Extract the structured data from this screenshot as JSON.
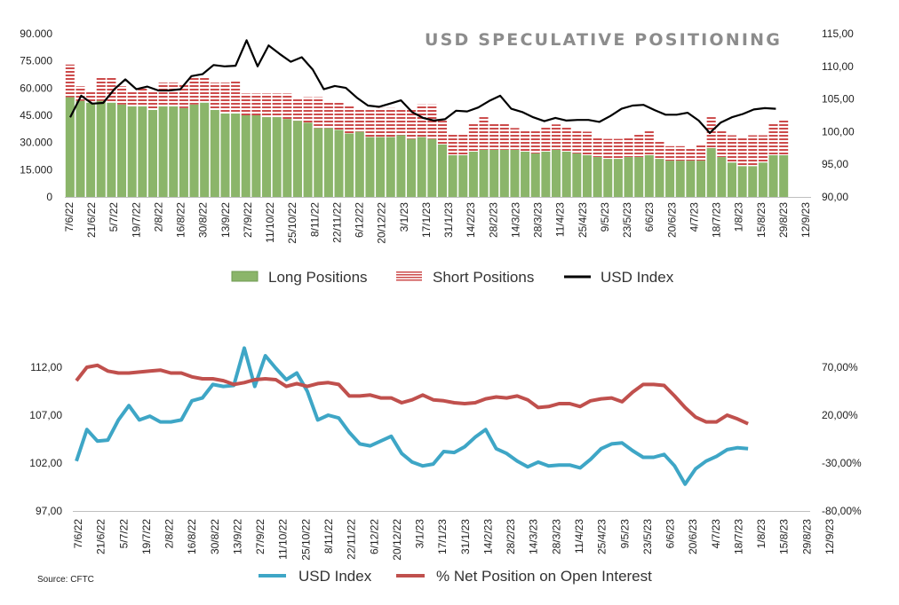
{
  "chart_data": [
    {
      "type": "bar",
      "title": "USD SPECULATIVE POSITIONING",
      "x_tick_labels": [
        "7/6/22",
        "21/6/22",
        "5/7/22",
        "19/7/22",
        "2/8/22",
        "16/8/22",
        "30/8/22",
        "13/9/22",
        "27/9/22",
        "11/10/22",
        "25/10/22",
        "8/11/22",
        "22/11/22",
        "6/12/22",
        "20/12/22",
        "3/1/23",
        "17/1/23",
        "31/1/23",
        "14/2/23",
        "28/2/23",
        "14/3/23",
        "28/3/23",
        "11/4/23",
        "25/4/23",
        "9/5/23",
        "23/5/23",
        "6/6/23",
        "20/6/23",
        "4/7/23",
        "18/7/23",
        "1/8/23",
        "15/8/23",
        "29/8/23",
        "12/9/23"
      ],
      "y_left": {
        "ylim": [
          0,
          90000
        ],
        "ticks": [
          "0",
          "15.000",
          "30.000",
          "45.000",
          "60.000",
          "75.000",
          "90.000"
        ]
      },
      "y_right": {
        "ylim": [
          90,
          115
        ],
        "ticks": [
          "90,00",
          "95,00",
          "100,00",
          "105,00",
          "110,00",
          "115,00"
        ]
      },
      "series": [
        {
          "name": "Long Positions",
          "color": "#8bb56a",
          "axis": "left",
          "type": "bar",
          "values": [
            55000,
            53000,
            52000,
            53000,
            52000,
            51000,
            50000,
            50000,
            48000,
            50000,
            50000,
            49000,
            51000,
            52000,
            48000,
            46000,
            46000,
            45000,
            45000,
            44000,
            44000,
            43000,
            42000,
            41000,
            38000,
            38000,
            37000,
            35000,
            36000,
            33000,
            33000,
            33000,
            34000,
            32000,
            33000,
            32000,
            29000,
            23000,
            23000,
            25000,
            26000,
            26000,
            26000,
            26000,
            25000,
            24000,
            25000,
            26000,
            25000,
            24000,
            23000,
            22000,
            21000,
            21000,
            22000,
            22000,
            23000,
            21000,
            20000,
            20000,
            20000,
            20000,
            27000,
            22000,
            19000,
            17000,
            17000,
            19000,
            23000,
            23000
          ]
        },
        {
          "name": "Short Positions",
          "color": "#cc4b4b",
          "axis": "left",
          "type": "bar",
          "values": [
            18000,
            8000,
            6000,
            13000,
            14000,
            10000,
            8000,
            10000,
            10000,
            13000,
            13000,
            13000,
            15000,
            14000,
            15000,
            17000,
            18000,
            12000,
            12000,
            13000,
            13000,
            14000,
            12000,
            14000,
            17000,
            14000,
            15000,
            15000,
            12000,
            15000,
            16000,
            16000,
            14000,
            16000,
            18000,
            19000,
            13000,
            12000,
            12000,
            16000,
            18000,
            15000,
            15000,
            12000,
            12000,
            13000,
            14000,
            14000,
            14000,
            13000,
            13000,
            11000,
            11000,
            11000,
            11000,
            13000,
            14000,
            10000,
            8000,
            8000,
            7000,
            9000,
            17000,
            15000,
            15000,
            16000,
            17000,
            15000,
            18000,
            20000
          ]
        },
        {
          "name": "USD Index",
          "color": "#000000",
          "axis": "right",
          "type": "line",
          "values": [
            102.2,
            105.5,
            104.3,
            104.4,
            106.5,
            108.0,
            106.5,
            106.9,
            106.3,
            106.3,
            106.5,
            108.5,
            108.8,
            110.2,
            110.0,
            110.1,
            114.0,
            110.0,
            113.2,
            111.9,
            110.7,
            111.4,
            109.5,
            106.5,
            107.0,
            106.7,
            105.2,
            104.0,
            103.8,
            104.3,
            104.8,
            103.0,
            102.1,
            101.7,
            101.9,
            103.2,
            103.1,
            103.7,
            104.7,
            105.5,
            103.5,
            103.0,
            102.2,
            101.6,
            102.1,
            101.7,
            101.8,
            101.8,
            101.5,
            102.4,
            103.5,
            104.0,
            104.1,
            103.3,
            102.6,
            102.6,
            102.9,
            101.7,
            99.8,
            101.4,
            102.2,
            102.7,
            103.4,
            103.6,
            103.5
          ]
        }
      ],
      "legend": "bottom"
    },
    {
      "type": "line",
      "x_tick_labels": [
        "7/6/22",
        "21/6/22",
        "5/7/22",
        "19/7/22",
        "2/8/22",
        "16/8/22",
        "30/8/22",
        "13/9/22",
        "27/9/22",
        "11/10/22",
        "25/10/22",
        "8/11/22",
        "22/11/22",
        "6/12/22",
        "20/12/22",
        "3/1/23",
        "17/1/23",
        "31/1/23",
        "14/2/23",
        "28/2/23",
        "14/3/23",
        "28/3/23",
        "11/4/23",
        "25/4/23",
        "9/5/23",
        "23/5/23",
        "6/6/23",
        "20/6/23",
        "4/7/23",
        "18/7/23",
        "1/8/23",
        "15/8/23",
        "29/8/23",
        "12/9/23"
      ],
      "y_left": {
        "ylim": [
          97,
          112
        ],
        "ticks": [
          "97,00",
          "102,00",
          "107,00",
          "112,00"
        ]
      },
      "y_right": {
        "ylim": [
          -80,
          70
        ],
        "ticks": [
          "-80,00%",
          "-30,00%",
          "20,00%",
          "70,00%"
        ]
      },
      "series": [
        {
          "name": "USD Index",
          "color": "#3ea6c6",
          "axis": "left",
          "values": [
            102.2,
            105.5,
            104.3,
            104.4,
            106.5,
            108.0,
            106.5,
            106.9,
            106.3,
            106.3,
            106.5,
            108.5,
            108.8,
            110.2,
            110.0,
            110.1,
            114.0,
            110.0,
            113.2,
            111.9,
            110.7,
            111.4,
            109.5,
            106.5,
            107.0,
            106.7,
            105.2,
            104.0,
            103.8,
            104.3,
            104.8,
            103.0,
            102.1,
            101.7,
            101.9,
            103.2,
            103.1,
            103.7,
            104.7,
            105.5,
            103.5,
            103.0,
            102.2,
            101.6,
            102.1,
            101.7,
            101.8,
            101.8,
            101.5,
            102.4,
            103.5,
            104.0,
            104.1,
            103.3,
            102.6,
            102.6,
            102.9,
            101.7,
            99.8,
            101.4,
            102.2,
            102.7,
            103.4,
            103.6,
            103.5
          ]
        },
        {
          "name": "% Net Position on Open Interest",
          "color": "#c0504d",
          "axis": "right",
          "values": [
            56,
            70,
            72,
            66,
            64,
            64,
            65,
            66,
            67,
            64,
            64,
            60,
            58,
            58,
            56,
            52,
            54,
            57,
            58,
            57,
            50,
            53,
            50,
            53,
            54,
            52,
            40,
            40,
            41,
            38,
            38,
            33,
            36,
            41,
            36,
            35,
            33,
            32,
            33,
            37,
            39,
            38,
            40,
            36,
            28,
            29,
            32,
            32,
            29,
            35,
            37,
            38,
            34,
            44,
            52,
            52,
            51,
            40,
            28,
            18,
            13,
            13,
            20,
            16,
            11
          ]
        }
      ],
      "legend": "bottom"
    }
  ],
  "source": "Source: CFTC"
}
